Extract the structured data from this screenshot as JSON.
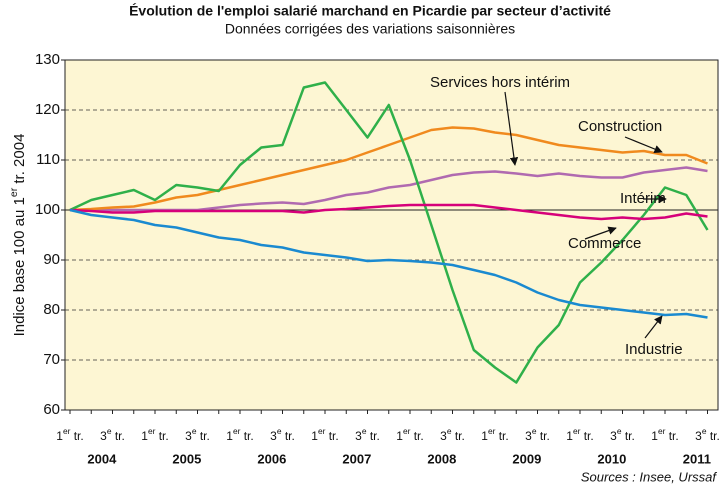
{
  "chart_data": {
    "type": "line",
    "title": "Évolution de l'emploi salarié marchand en Picardie par secteur d’activité",
    "subtitle": "Données corrigées des variations saisonnières",
    "y_label": "Indice base 100 au 1er tr. 2004",
    "source": "Sources : Insee, Urssaf",
    "categories": [
      "1er tr.",
      null,
      "3e tr.",
      null,
      "1er tr.",
      null,
      "3e tr.",
      null,
      "1er tr.",
      null,
      "3e tr.",
      null,
      "1er tr.",
      null,
      "3e tr.",
      null,
      "1er tr.",
      null,
      "3e tr.",
      null,
      "1er tr.",
      null,
      "3e tr.",
      null,
      "1er tr.",
      null,
      "3e tr.",
      null,
      "1er tr.",
      null,
      "3e tr."
    ],
    "years": [
      "2004",
      "2005",
      "2006",
      "2007",
      "2008",
      "2009",
      "2010",
      "2011"
    ],
    "ylim": [
      60,
      130
    ],
    "yticks": [
      60,
      70,
      80,
      90,
      100,
      110,
      120,
      130
    ],
    "grid": true,
    "reference_line": 100,
    "series": [
      {
        "name": "Services hors intérim",
        "color": "#b06ab0",
        "values": [
          100,
          100,
          100,
          100,
          100,
          100,
          100,
          100.5,
          101,
          101.3,
          101.5,
          101.2,
          102,
          103,
          103.5,
          104.5,
          105,
          106,
          107,
          107.5,
          107.7,
          107.3,
          106.8,
          107.3,
          106.8,
          106.5,
          106.5,
          107.5,
          108,
          108.5,
          107.8
        ]
      },
      {
        "name": "Construction",
        "color": "#f08a1e",
        "values": [
          100,
          100.2,
          100.5,
          100.7,
          101.5,
          102.5,
          103,
          104,
          105,
          106,
          107,
          108,
          109,
          110,
          111.5,
          113,
          114.5,
          116,
          116.5,
          116.3,
          115.5,
          115,
          114,
          113,
          112.5,
          112,
          111.5,
          111.8,
          111,
          111,
          109.3
        ]
      },
      {
        "name": "Intérim",
        "color": "#2fb04a",
        "values": [
          100,
          102,
          103,
          104,
          102,
          105,
          104.5,
          103.8,
          109,
          112.5,
          113,
          124.5,
          125.5,
          120,
          114.5,
          121,
          110,
          97,
          84,
          72,
          68.5,
          65.5,
          72.5,
          77,
          85.5,
          89.5,
          94,
          99,
          104.5,
          103,
          96
        ]
      },
      {
        "name": "Commerce",
        "color": "#d6007a",
        "values": [
          100,
          99.8,
          99.5,
          99.5,
          99.8,
          99.8,
          99.8,
          99.8,
          99.8,
          99.8,
          99.8,
          99.5,
          100,
          100.2,
          100.5,
          100.8,
          101,
          101,
          101,
          101,
          100.5,
          100,
          99.5,
          99,
          98.5,
          98.2,
          98.5,
          98.2,
          98.5,
          99.3,
          98.7
        ]
      },
      {
        "name": "Industrie",
        "color": "#1a8ad0",
        "values": [
          100,
          99,
          98.5,
          98,
          97,
          96.5,
          95.5,
          94.5,
          94,
          93,
          92.5,
          91.5,
          91,
          90.5,
          89.8,
          90,
          89.8,
          89.5,
          89,
          88,
          87,
          85.5,
          83.5,
          82,
          81,
          80.5,
          80,
          79.5,
          79,
          79.2,
          78.5
        ]
      }
    ]
  }
}
